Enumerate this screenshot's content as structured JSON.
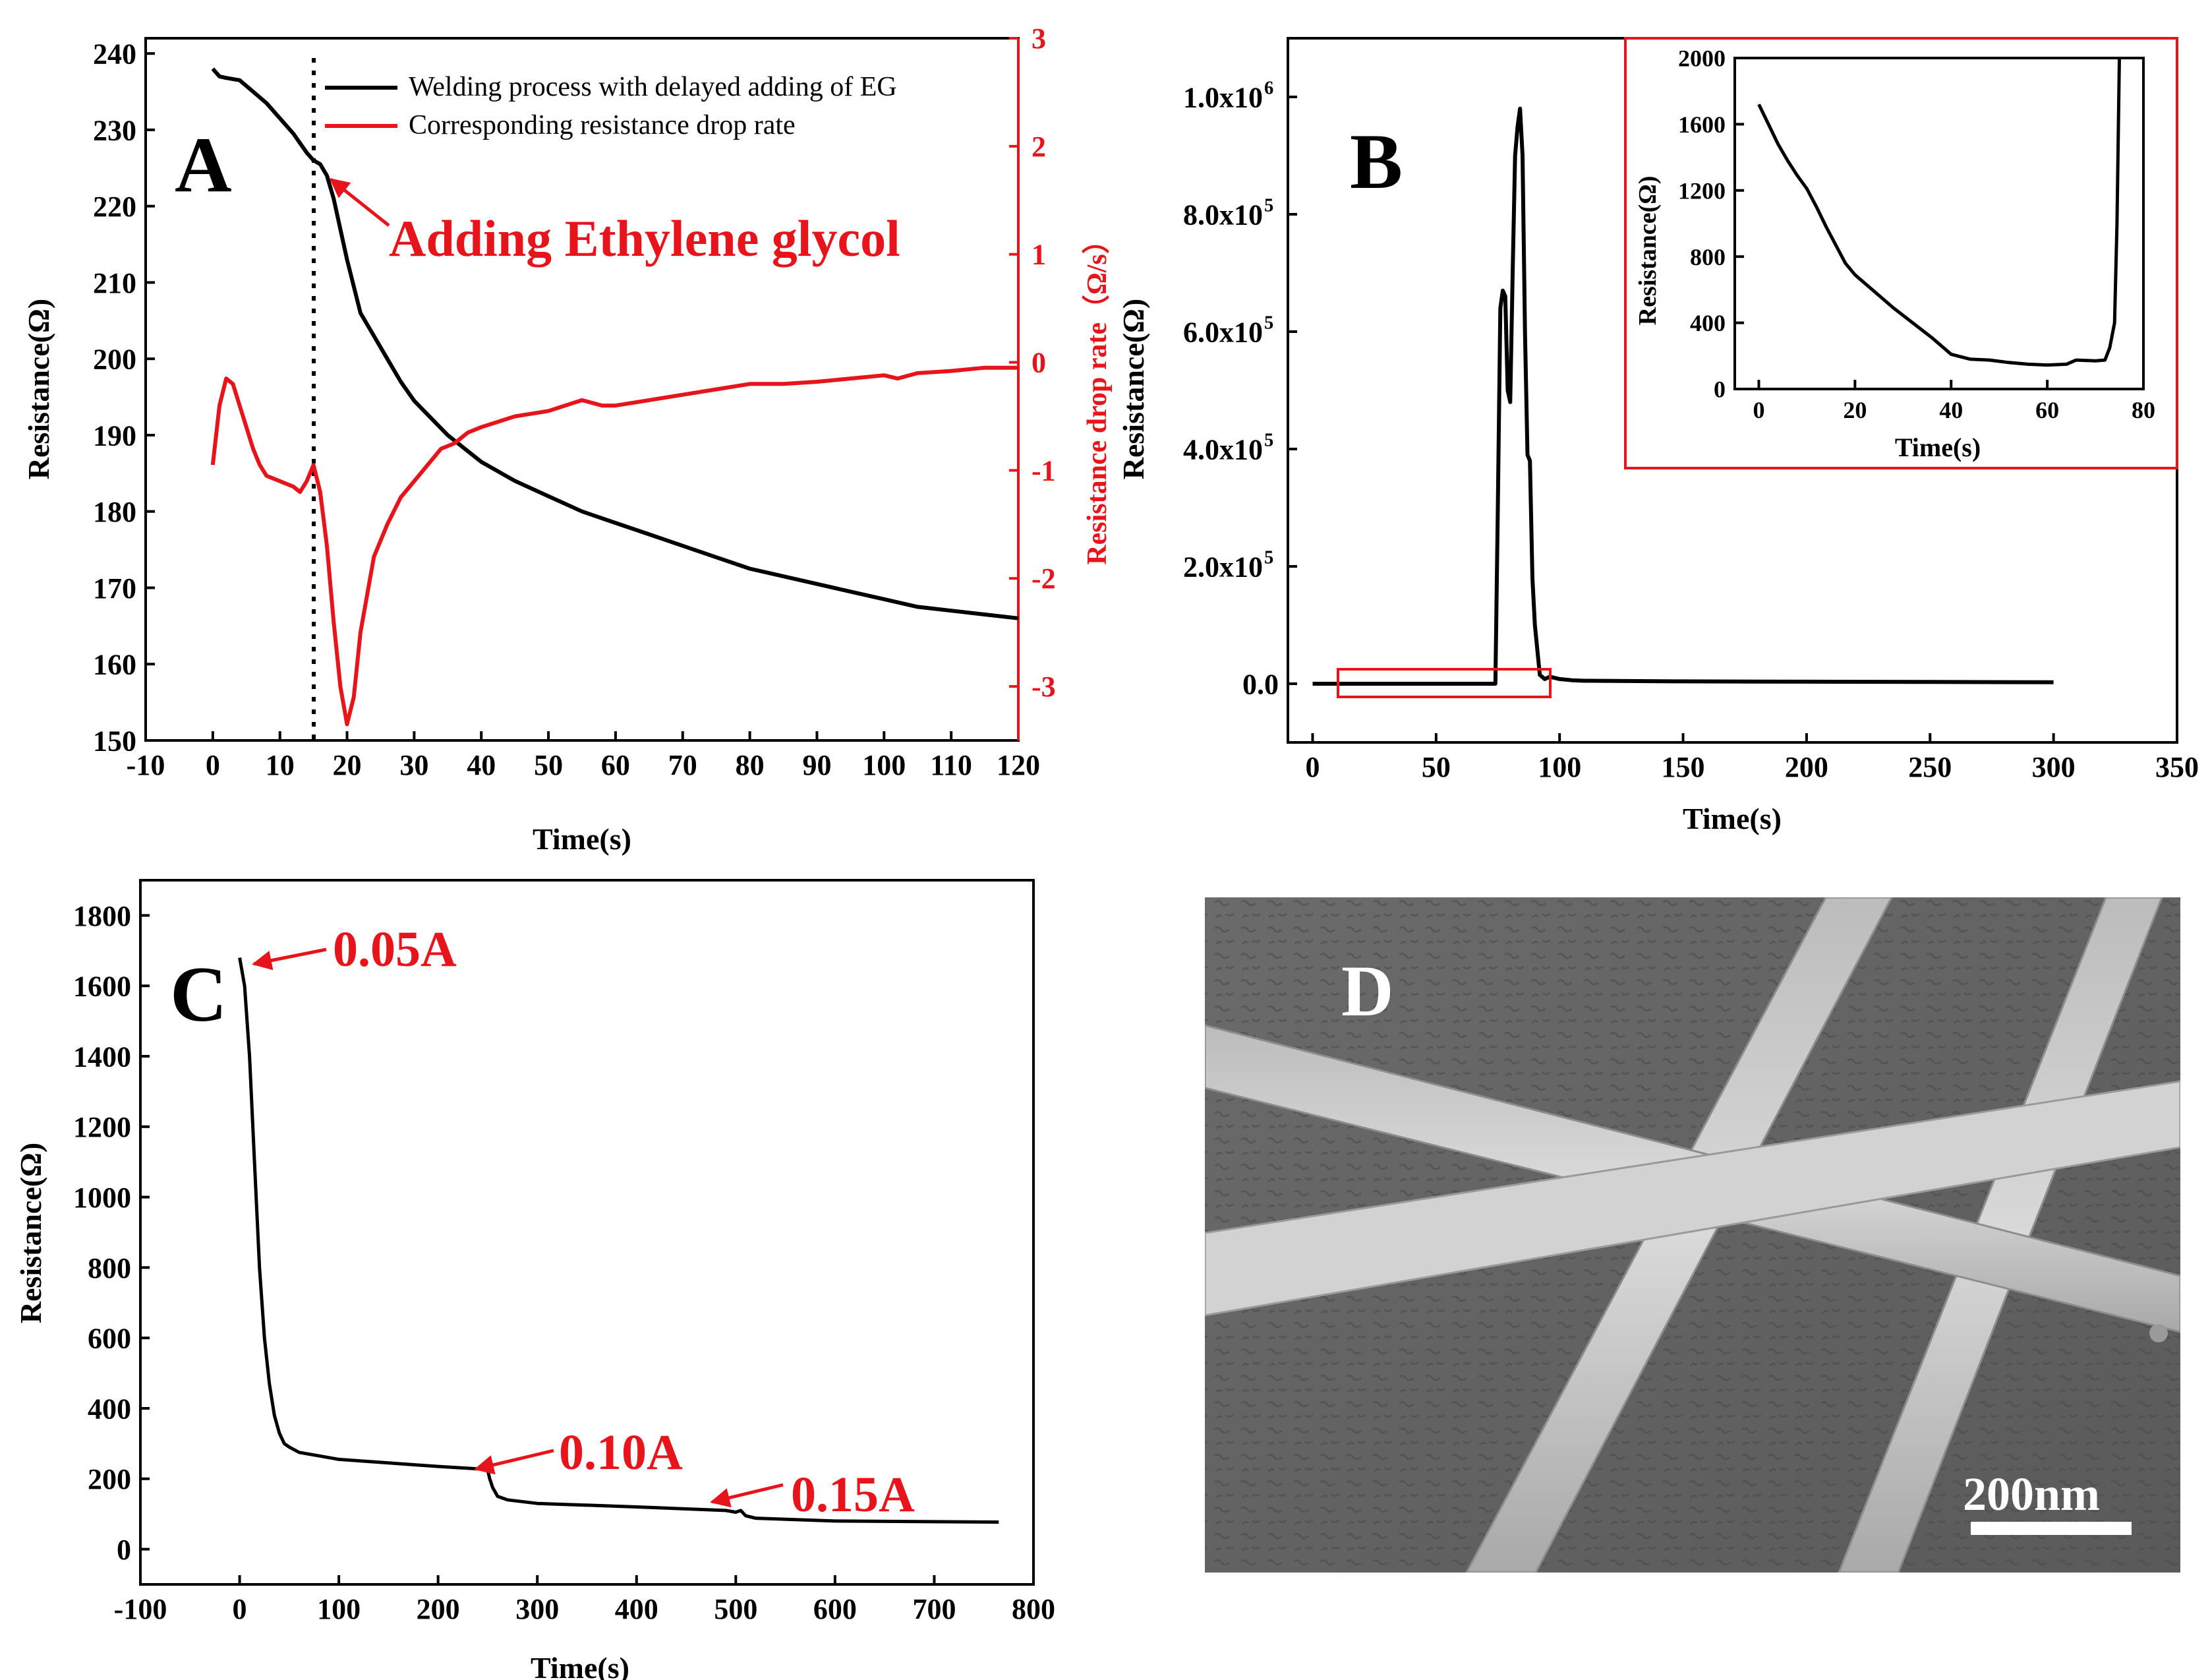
{
  "chart_data": [
    {
      "id": "A",
      "type": "line",
      "panel_label": "A",
      "xlabel": "Time(s)",
      "ylabel": "Resistance(Ω)",
      "y2label": "Resistance drop rate（Ω/s）",
      "xlim": [
        -10,
        120
      ],
      "ylim": [
        150,
        242
      ],
      "y2lim": [
        -3.5,
        3
      ],
      "xticks": [
        "-10",
        "0",
        "10",
        "20",
        "30",
        "40",
        "50",
        "60",
        "70",
        "80",
        "90",
        "100",
        "110",
        "120"
      ],
      "yticks": [
        "150",
        "160",
        "170",
        "180",
        "190",
        "200",
        "210",
        "220",
        "230",
        "240"
      ],
      "y2ticks": [
        "-3",
        "-2",
        "-1",
        "0",
        "1",
        "2",
        "3"
      ],
      "legend": [
        "Welding process with delayed adding of EG",
        "Corresponding resistance drop rate"
      ],
      "legend_position": "top-right",
      "annotation": "Adding Ethylene glycol",
      "vline_x": 15,
      "series": [
        {
          "name": "Welding process with delayed adding of EG",
          "axis": "left",
          "color": "#000000",
          "x": [
            0,
            1,
            2,
            4,
            6,
            8,
            10,
            12,
            14,
            15,
            16,
            17,
            18,
            20,
            22,
            24,
            26,
            28,
            30,
            35,
            40,
            45,
            50,
            55,
            60,
            65,
            70,
            75,
            80,
            85,
            90,
            95,
            100,
            105,
            110,
            115,
            120
          ],
          "y": [
            238,
            237,
            236.8,
            236.5,
            235,
            233.5,
            231.5,
            229.5,
            227,
            226,
            225.5,
            224,
            221,
            213,
            206,
            203,
            200,
            197,
            194.5,
            190,
            186.5,
            184,
            182,
            180,
            178.5,
            177,
            175.5,
            174,
            172.5,
            171.5,
            170.5,
            169.5,
            168.5,
            167.5,
            167,
            166.5,
            166
          ]
        },
        {
          "name": "Corresponding resistance drop rate",
          "axis": "right",
          "color": "#e8141b",
          "x": [
            0,
            1,
            2,
            3,
            4,
            5,
            6,
            7,
            8,
            10,
            12,
            13,
            14,
            15,
            16,
            17,
            18,
            19,
            20,
            21,
            22,
            24,
            26,
            28,
            30,
            32,
            34,
            36,
            38,
            40,
            45,
            50,
            55,
            58,
            60,
            65,
            70,
            75,
            80,
            85,
            90,
            95,
            100,
            102,
            105,
            110,
            115,
            120
          ],
          "y": [
            -0.95,
            -0.4,
            -0.15,
            -0.2,
            -0.4,
            -0.6,
            -0.8,
            -0.95,
            -1.05,
            -1.1,
            -1.15,
            -1.2,
            -1.1,
            -0.95,
            -1.2,
            -1.7,
            -2.4,
            -3.0,
            -3.35,
            -3.1,
            -2.5,
            -1.8,
            -1.5,
            -1.25,
            -1.1,
            -0.95,
            -0.8,
            -0.75,
            -0.65,
            -0.6,
            -0.5,
            -0.45,
            -0.35,
            -0.4,
            -0.4,
            -0.35,
            -0.3,
            -0.25,
            -0.2,
            -0.2,
            -0.18,
            -0.15,
            -0.12,
            -0.15,
            -0.1,
            -0.08,
            -0.05,
            -0.05
          ]
        }
      ]
    },
    {
      "id": "B",
      "type": "line",
      "panel_label": "B",
      "xlabel": "Time(s)",
      "ylabel": "Resistance(Ω)",
      "xlim": [
        -10,
        350
      ],
      "ylim": [
        -100000,
        1100000
      ],
      "xticks": [
        "0",
        "50",
        "100",
        "150",
        "200",
        "250",
        "300",
        "350"
      ],
      "yticks": [
        "0.0",
        "2.0x10",
        "4.0x10",
        "6.0x10",
        "8.0x10",
        "1.0x10"
      ],
      "ytick_exponents": [
        "",
        "5",
        "5",
        "5",
        "5",
        "6"
      ],
      "series": [
        {
          "name": "resistance",
          "color": "#000000",
          "x": [
            0,
            70,
            74,
            75,
            76,
            77,
            78,
            79,
            80,
            81,
            82,
            83,
            84,
            85,
            86,
            87,
            88,
            89,
            90,
            92,
            94,
            96,
            100,
            105,
            110,
            150,
            200,
            250,
            300
          ],
          "y": [
            0,
            0,
            0,
            300000,
            640000,
            670000,
            660000,
            500000,
            480000,
            700000,
            900000,
            950000,
            980000,
            900000,
            600000,
            390000,
            380000,
            180000,
            100000,
            15000,
            8000,
            12000,
            8000,
            6000,
            5000,
            4000,
            3500,
            3000,
            2500
          ]
        }
      ],
      "inset": {
        "xlabel": "Time(s)",
        "ylabel": "Resistance(Ω)",
        "xlim": [
          -5,
          80
        ],
        "ylim": [
          0,
          2000
        ],
        "xticks": [
          "0",
          "20",
          "40",
          "60",
          "80"
        ],
        "yticks": [
          "0",
          "400",
          "800",
          "1200",
          "1600",
          "2000"
        ],
        "x": [
          0,
          2,
          4,
          6,
          8,
          10,
          12,
          14,
          16,
          18,
          20,
          24,
          28,
          32,
          36,
          40,
          44,
          48,
          52,
          56,
          60,
          64,
          66,
          70,
          72,
          73,
          74,
          74.5,
          75,
          75
        ],
        "y": [
          1720,
          1600,
          1480,
          1380,
          1290,
          1210,
          1100,
          980,
          870,
          760,
          690,
          590,
          490,
          400,
          310,
          210,
          180,
          175,
          160,
          150,
          145,
          150,
          175,
          170,
          175,
          250,
          400,
          1000,
          2000,
          2000
        ]
      }
    },
    {
      "id": "C",
      "type": "line",
      "panel_label": "C",
      "xlabel": "Time(s)",
      "ylabel": "Resistance(Ω)",
      "xlim": [
        -100,
        800
      ],
      "ylim": [
        -100,
        1900
      ],
      "xticks": [
        "-100",
        "0",
        "100",
        "200",
        "300",
        "400",
        "500",
        "600",
        "700",
        "800"
      ],
      "yticks": [
        "0",
        "200",
        "400",
        "600",
        "800",
        "1000",
        "1200",
        "1400",
        "1600",
        "1800"
      ],
      "annotations": [
        "0.05A",
        "0.10A",
        "0.15A"
      ],
      "series": [
        {
          "name": "resistance",
          "color": "#000000",
          "x": [
            0,
            5,
            10,
            15,
            20,
            25,
            30,
            35,
            40,
            45,
            50,
            60,
            80,
            100,
            150,
            200,
            240,
            250,
            252,
            255,
            260,
            270,
            300,
            400,
            490,
            500,
            505,
            510,
            520,
            600,
            700,
            765
          ],
          "y": [
            1680,
            1600,
            1400,
            1100,
            800,
            600,
            470,
            380,
            330,
            300,
            290,
            275,
            265,
            255,
            245,
            235,
            228,
            225,
            200,
            175,
            150,
            140,
            130,
            120,
            110,
            105,
            110,
            95,
            88,
            80,
            78,
            77
          ]
        }
      ]
    }
  ],
  "panel_d": {
    "label": "D",
    "scale_bar": "200nm"
  }
}
